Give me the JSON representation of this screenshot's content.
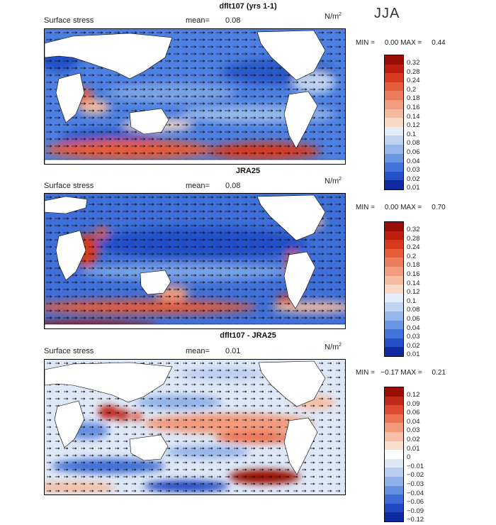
{
  "season": "JJA",
  "panels": [
    {
      "title": "dflt107 (yrs 1-1)",
      "subtitle": "Surface stress",
      "mean_label": "mean=",
      "mean_value": "0.08",
      "units_base": "N/m",
      "units_exp": "2",
      "minmax_text": "MIN =     0.00 MAX =     0.44",
      "colorbar": {
        "labels": [
          "0.32",
          "0.28",
          "0.24",
          "0.2",
          "0.18",
          "0.16",
          "0.14",
          "0.12",
          "0.1",
          "0.08",
          "0.06",
          "0.04",
          "0.03",
          "0.02",
          "0.01"
        ],
        "colors": [
          "#9a0d06",
          "#bd1e10",
          "#d63a1f",
          "#e45c3a",
          "#ec7d5c",
          "#f19c7e",
          "#f4bba0",
          "#f7d9c6",
          "#e3ecf7",
          "#bfd3f0",
          "#94b6ea",
          "#6a95e2",
          "#4274db",
          "#2450c8",
          "#0e2a9e"
        ]
      }
    },
    {
      "title": "JRA25",
      "subtitle": "Surface stress",
      "mean_label": "mean=",
      "mean_value": "0.08",
      "units_base": "N/m",
      "units_exp": "2",
      "minmax_text": "MIN =     0.00 MAX =     0.70",
      "colorbar": {
        "labels": [
          "0.32",
          "0.28",
          "0.24",
          "0.2",
          "0.18",
          "0.16",
          "0.14",
          "0.12",
          "0.1",
          "0.08",
          "0.06",
          "0.04",
          "0.03",
          "0.02",
          "0.01"
        ],
        "colors": [
          "#9a0d06",
          "#bd1e10",
          "#d63a1f",
          "#e45c3a",
          "#ec7d5c",
          "#f19c7e",
          "#f4bba0",
          "#f7d9c6",
          "#e3ecf7",
          "#bfd3f0",
          "#94b6ea",
          "#6a95e2",
          "#4274db",
          "#2450c8",
          "#0e2a9e"
        ]
      }
    },
    {
      "title": "dflt107 - JRA25",
      "subtitle": "Surface stress",
      "mean_label": "mean=",
      "mean_value": "0.01",
      "units_base": "N/m",
      "units_exp": "2",
      "minmax_text": "MIN =   −0.17 MAX =     0.21",
      "colorbar": {
        "labels": [
          "0.12",
          "0.09",
          "0.06",
          "0.04",
          "0.03",
          "0.02",
          "0.01",
          "0",
          "−0.01",
          "−0.02",
          "−0.03",
          "−0.04",
          "−0.06",
          "−0.09",
          "−0.12"
        ],
        "colors": [
          "#9a0d06",
          "#c2281a",
          "#dd4a2d",
          "#eb7352",
          "#f29a7b",
          "#f6bea6",
          "#f9dccd",
          "#ffffff",
          "#dde7f6",
          "#b9cdf0",
          "#90b1e9",
          "#6690e0",
          "#3e6dd6",
          "#2048c2",
          "#0e2a9e"
        ]
      }
    }
  ]
}
